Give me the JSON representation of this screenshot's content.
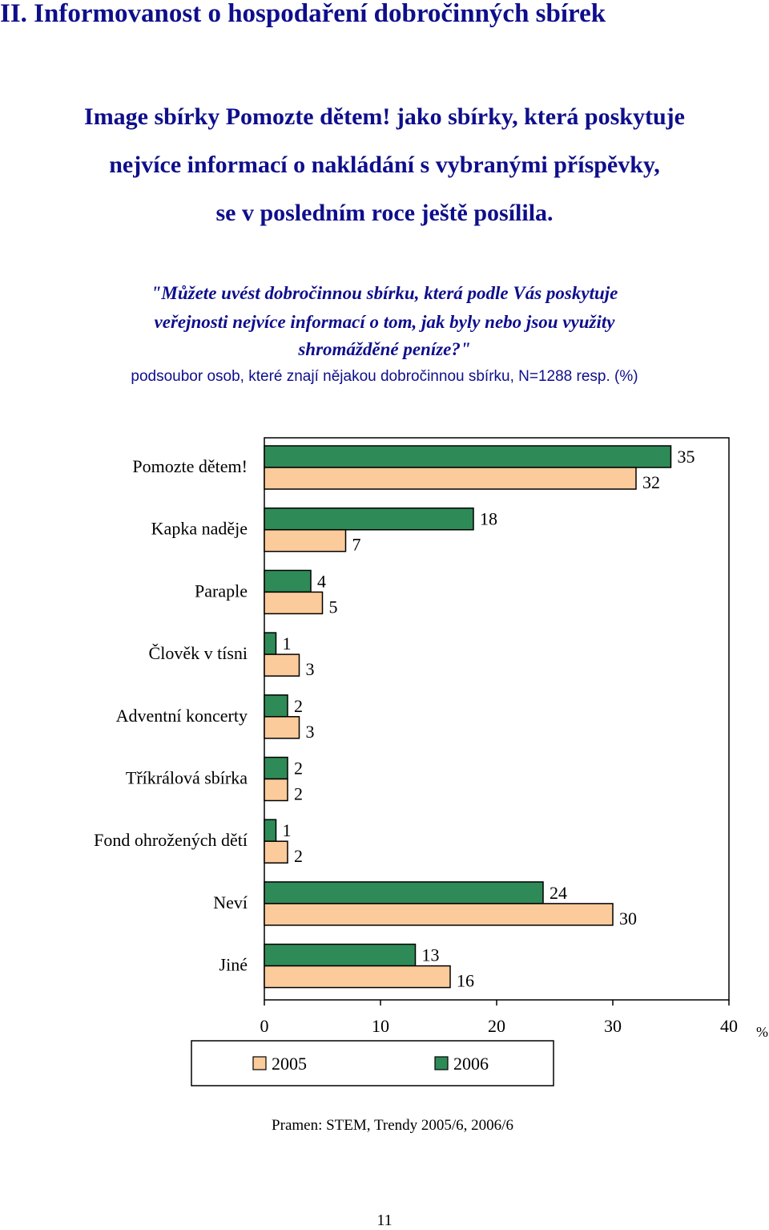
{
  "page": {
    "heading": "II. Informovanost o hospodaření dobročinných sbírek",
    "headline": [
      "Image sbírky Pomozte dětem! jako sbírky, která poskytuje",
      "nejvíce informací o nakládání s vybranými příspěvky,",
      "se v posledním roce ještě posílila."
    ],
    "question": [
      "\"Můžete uvést dobročinnou sbírku, která podle Vás poskytuje",
      "veřejnosti nejvíce informací o tom, jak byly nebo jsou využity",
      "shromážděné peníze?\""
    ],
    "subtitle": "podsoubor osob, které znají nějakou dobročinnou sbírku, N=1288 resp. (%)",
    "source": "Pramen: STEM, Trendy 2005/6, 2006/6",
    "page_number": "11"
  },
  "chart_data": {
    "type": "bar",
    "orientation": "horizontal",
    "categories": [
      "Pomozte dětem!",
      "Kapka naděje",
      "Paraple",
      "Člověk v tísni",
      "Adventní koncerty",
      "Tříkrálová sbírka",
      "Fond ohrožených dětí",
      "Neví",
      "Jiné"
    ],
    "series": [
      {
        "name": "2006",
        "values": [
          35,
          18,
          4,
          1,
          2,
          2,
          1,
          24,
          13
        ],
        "color": "#2e8b57"
      },
      {
        "name": "2005",
        "values": [
          32,
          7,
          5,
          3,
          3,
          2,
          2,
          30,
          16
        ],
        "color": "#fccb9b"
      }
    ],
    "xlim": [
      0,
      40
    ],
    "xticks": [
      "0",
      "10",
      "20",
      "30",
      "40"
    ],
    "unit_label": "%",
    "legend": {
      "position": "bottom",
      "entries": [
        "2005",
        "2006"
      ]
    },
    "grid": false
  }
}
